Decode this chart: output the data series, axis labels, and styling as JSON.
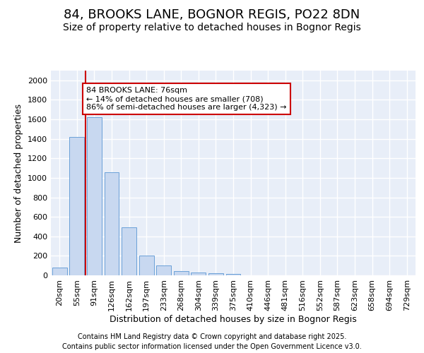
{
  "title1": "84, BROOKS LANE, BOGNOR REGIS, PO22 8DN",
  "title2": "Size of property relative to detached houses in Bognor Regis",
  "xlabel": "Distribution of detached houses by size in Bognor Regis",
  "ylabel": "Number of detached properties",
  "categories": [
    "20sqm",
    "55sqm",
    "91sqm",
    "126sqm",
    "162sqm",
    "197sqm",
    "233sqm",
    "268sqm",
    "304sqm",
    "339sqm",
    "375sqm",
    "410sqm",
    "446sqm",
    "481sqm",
    "516sqm",
    "552sqm",
    "587sqm",
    "623sqm",
    "658sqm",
    "694sqm",
    "729sqm"
  ],
  "values": [
    80,
    1420,
    1620,
    1055,
    490,
    205,
    105,
    40,
    30,
    20,
    18,
    0,
    0,
    0,
    0,
    0,
    0,
    0,
    0,
    0,
    0
  ],
  "bar_color": "#c8d8f0",
  "bar_edge_color": "#6aa0d8",
  "vline_x": 1.5,
  "vline_color": "#cc0000",
  "annotation_text": "84 BROOKS LANE: 76sqm\n← 14% of detached houses are smaller (708)\n86% of semi-detached houses are larger (4,323) →",
  "annotation_box_color": "white",
  "annotation_box_edge": "#cc0000",
  "ylim": [
    0,
    2100
  ],
  "yticks": [
    0,
    200,
    400,
    600,
    800,
    1000,
    1200,
    1400,
    1600,
    1800,
    2000
  ],
  "footer1": "Contains HM Land Registry data © Crown copyright and database right 2025.",
  "footer2": "Contains public sector information licensed under the Open Government Licence v3.0.",
  "bg_color": "#ffffff",
  "plot_bg_color": "#e8eef8",
  "grid_color": "#ffffff",
  "title1_fontsize": 13,
  "title2_fontsize": 10,
  "ylabel_fontsize": 9,
  "xlabel_fontsize": 9,
  "tick_fontsize": 8,
  "footer_fontsize": 7,
  "annot_fontsize": 8
}
